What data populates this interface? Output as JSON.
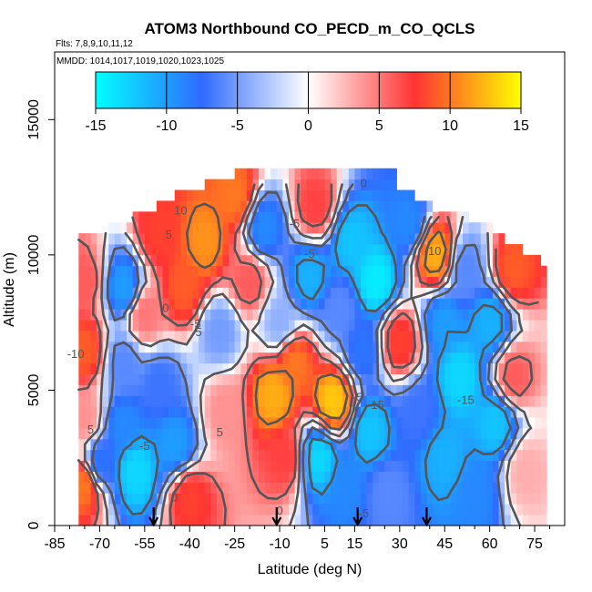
{
  "chart_data": {
    "type": "heatmap",
    "title": "ATOM3 Northbound CO_PECD_m_CO_QCLS",
    "subtitle": "Flts: 7,8,9,10,11,12",
    "annotation": "MMDD: 1014,1017,1019,1020,1023,1025",
    "xlabel": "Latitude (deg N)",
    "ylabel": "Altitude (m)",
    "xlim": [
      -85,
      85
    ],
    "ylim": [
      0,
      17500
    ],
    "x_ticks": [
      -85,
      -70,
      -55,
      -40,
      -25,
      -10,
      5,
      15,
      30,
      45,
      60,
      75
    ],
    "x_tick_labels": [
      "-85",
      "-70",
      "-55",
      "-40",
      "-25",
      "-10",
      "5",
      "15",
      "30",
      "45",
      "60",
      "75"
    ],
    "y_ticks": [
      0,
      5000,
      10000,
      15000
    ],
    "y_tick_labels": [
      "0",
      "5000",
      "10000",
      "15000"
    ],
    "colorbar": {
      "min": -15,
      "max": 15,
      "ticks": [
        -15,
        -10,
        -5,
        0,
        5,
        10,
        15
      ],
      "tick_labels": [
        "-15",
        "-10",
        "-5",
        "0",
        "5",
        "10",
        "15"
      ],
      "colors": [
        "#00ffff",
        "#2f6bff",
        "#ffffff",
        "#ff3333",
        "#ffff00"
      ]
    },
    "contour_labels": [
      {
        "text": "10",
        "lat": -43,
        "alt": 11500
      },
      {
        "text": "5",
        "lat": -47,
        "alt": 10600
      },
      {
        "text": "-5",
        "lat": -5,
        "alt": 11000
      },
      {
        "text": "0",
        "lat": 18,
        "alt": 12500
      },
      {
        "text": "-5",
        "lat": 0,
        "alt": 9900
      },
      {
        "text": "-10",
        "lat": 41,
        "alt": 10000
      },
      {
        "text": "0",
        "lat": -48,
        "alt": 7900
      },
      {
        "text": "-5",
        "lat": -38,
        "alt": 7300
      },
      {
        "text": "5",
        "lat": -37,
        "alt": 7000
      },
      {
        "text": "-10",
        "lat": -78,
        "alt": 6200
      },
      {
        "text": "-5",
        "lat": 16,
        "alt": 4600
      },
      {
        "text": "-15",
        "lat": 22,
        "alt": 4300
      },
      {
        "text": "-15",
        "lat": 52,
        "alt": 4500
      },
      {
        "text": "5",
        "lat": -73,
        "alt": 3400
      },
      {
        "text": "-5",
        "lat": -55,
        "alt": 2800
      },
      {
        "text": "5",
        "lat": -30,
        "alt": 3300
      },
      {
        "text": "0",
        "lat": -45,
        "alt": 900
      },
      {
        "text": "0",
        "lat": -10,
        "alt": 400
      },
      {
        "text": "-5",
        "lat": 18,
        "alt": 300
      }
    ],
    "flight_markers_lat": [
      -52,
      -11,
      16,
      39
    ],
    "field": [
      {
        "lat": -75,
        "alt": 9000,
        "v": 6
      },
      {
        "lat": -75,
        "alt": 6500,
        "v": 9
      },
      {
        "lat": -75,
        "alt": 4000,
        "v": 4
      },
      {
        "lat": -75,
        "alt": 1500,
        "v": 10
      },
      {
        "lat": -70,
        "alt": 2300,
        "v": -8
      },
      {
        "lat": -62,
        "alt": 8800,
        "v": -10
      },
      {
        "lat": -62,
        "alt": 6000,
        "v": -6
      },
      {
        "lat": -62,
        "alt": 3700,
        "v": -9
      },
      {
        "lat": -58,
        "alt": 2000,
        "v": -13
      },
      {
        "lat": -55,
        "alt": 7800,
        "v": 5
      },
      {
        "lat": -50,
        "alt": 10800,
        "v": 8
      },
      {
        "lat": -50,
        "alt": 5200,
        "v": -7
      },
      {
        "lat": -45,
        "alt": 3000,
        "v": -10
      },
      {
        "lat": -42,
        "alt": 8800,
        "v": 9
      },
      {
        "lat": -40,
        "alt": 1000,
        "v": 8
      },
      {
        "lat": -35,
        "alt": 10500,
        "v": 11
      },
      {
        "lat": -30,
        "alt": 7200,
        "v": -5
      },
      {
        "lat": -28,
        "alt": 4200,
        "v": 4
      },
      {
        "lat": -25,
        "alt": 12200,
        "v": 10
      },
      {
        "lat": -20,
        "alt": 9000,
        "v": 6
      },
      {
        "lat": -15,
        "alt": 11000,
        "v": -9
      },
      {
        "lat": -12,
        "alt": 4800,
        "v": 12
      },
      {
        "lat": -10,
        "alt": 7500,
        "v": -4
      },
      {
        "lat": -8,
        "alt": 2500,
        "v": 7
      },
      {
        "lat": -5,
        "alt": 6000,
        "v": 10
      },
      {
        "lat": 0,
        "alt": 9200,
        "v": -11
      },
      {
        "lat": 2,
        "alt": 11800,
        "v": 7
      },
      {
        "lat": 3,
        "alt": 2500,
        "v": -13
      },
      {
        "lat": 8,
        "alt": 4600,
        "v": 13
      },
      {
        "lat": 10,
        "alt": 8000,
        "v": -6
      },
      {
        "lat": 12,
        "alt": 1500,
        "v": -9
      },
      {
        "lat": 14,
        "alt": 10500,
        "v": -12
      },
      {
        "lat": 18,
        "alt": 6500,
        "v": -8
      },
      {
        "lat": 20,
        "alt": 3500,
        "v": -12
      },
      {
        "lat": 22,
        "alt": 9000,
        "v": -14
      },
      {
        "lat": 26,
        "alt": 1200,
        "v": -6
      },
      {
        "lat": 30,
        "alt": 6800,
        "v": 8
      },
      {
        "lat": 33,
        "alt": 11200,
        "v": -9
      },
      {
        "lat": 36,
        "alt": 4200,
        "v": -7
      },
      {
        "lat": 42,
        "alt": 10000,
        "v": 12
      },
      {
        "lat": 45,
        "alt": 7500,
        "v": -10
      },
      {
        "lat": 45,
        "alt": 2500,
        "v": -11
      },
      {
        "lat": 50,
        "alt": 5500,
        "v": -13
      },
      {
        "lat": 52,
        "alt": 9500,
        "v": -6
      },
      {
        "lat": 55,
        "alt": 1200,
        "v": -9
      },
      {
        "lat": 60,
        "alt": 7500,
        "v": -11
      },
      {
        "lat": 62,
        "alt": 3800,
        "v": -12
      },
      {
        "lat": 68,
        "alt": 9500,
        "v": 9
      },
      {
        "lat": 68,
        "alt": 5500,
        "v": 6
      },
      {
        "lat": 72,
        "alt": 2000,
        "v": 3
      }
    ]
  }
}
